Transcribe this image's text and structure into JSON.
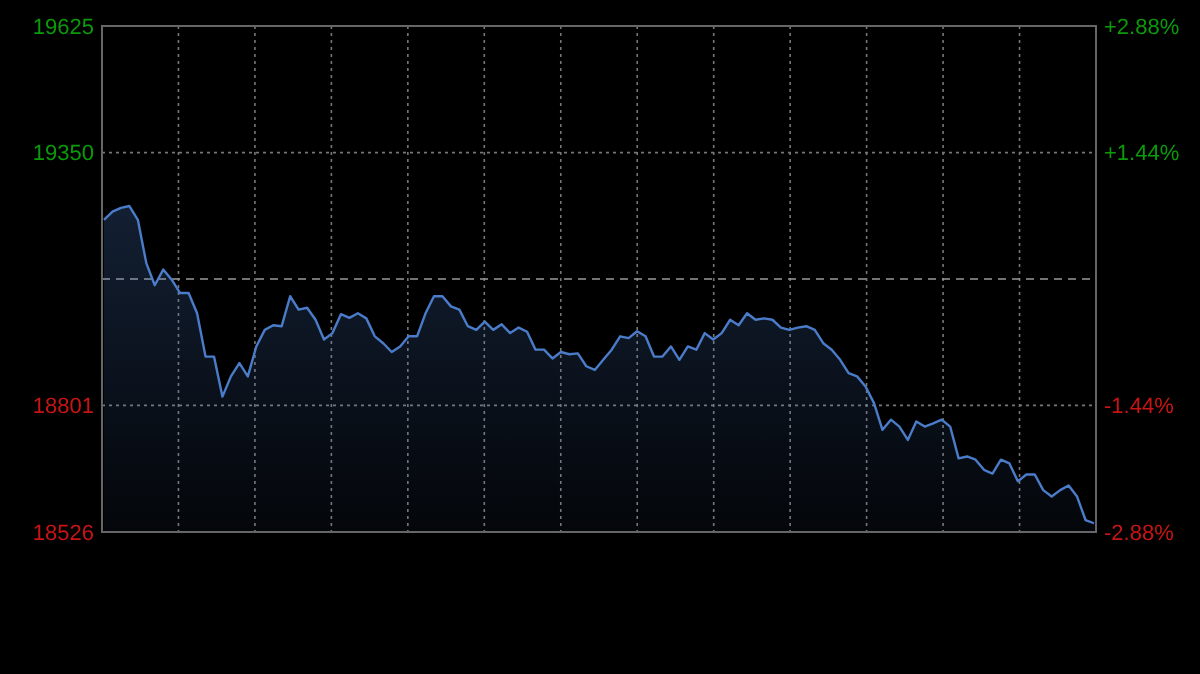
{
  "chart_data": {
    "type": "area",
    "categories": [
      null,
      null,
      null,
      null,
      null,
      null,
      null,
      null,
      null,
      null,
      null,
      null,
      null,
      null,
      null,
      null,
      null,
      null,
      null,
      null,
      null,
      null,
      null,
      null,
      null,
      null,
      null,
      null,
      null,
      null,
      null,
      null,
      null,
      null,
      null,
      null,
      null,
      null,
      null,
      null,
      null,
      null,
      null,
      null,
      null,
      null,
      null,
      null,
      null,
      null,
      null,
      null,
      null,
      null,
      null,
      null,
      null,
      null,
      null,
      null,
      null,
      null,
      null,
      null,
      null,
      null,
      null,
      null,
      null,
      null,
      null,
      null,
      null,
      null,
      null,
      null,
      null,
      null,
      null,
      null,
      null,
      null,
      null,
      null,
      null,
      null,
      null,
      null,
      null,
      null,
      null,
      null,
      null,
      null,
      null,
      null,
      null,
      null,
      null,
      null,
      null,
      null,
      null,
      null,
      null,
      null,
      null,
      null,
      null,
      null,
      null,
      null,
      null,
      null,
      null,
      null,
      null,
      null
    ],
    "series": [
      {
        "color": "#4a7cc9",
        "values": [
          19204,
          19222,
          19230,
          19234,
          19204,
          19110,
          19062,
          19096,
          19074,
          19045,
          19045,
          19001,
          18907,
          18907,
          18820,
          18864,
          18893,
          18864,
          18929,
          18965,
          18975,
          18973,
          19038,
          19009,
          19013,
          18987,
          18944,
          18958,
          18999,
          18991,
          19001,
          18990,
          18951,
          18936,
          18917,
          18929,
          18951,
          18951,
          19001,
          19038,
          19038,
          19016,
          19009,
          18973,
          18965,
          18983,
          18965,
          18977,
          18958,
          18970,
          18961,
          18922,
          18922,
          18903,
          18917,
          18912,
          18914,
          18886,
          18878,
          18900,
          18922,
          18951,
          18947,
          18962,
          18951,
          18907,
          18907,
          18929,
          18900,
          18929,
          18922,
          18958,
          18944,
          18958,
          18987,
          18975,
          19001,
          18987,
          18990,
          18987,
          18970,
          18965,
          18970,
          18973,
          18965,
          18936,
          18922,
          18900,
          18871,
          18864,
          18842,
          18806,
          18748,
          18770,
          18755,
          18726,
          18766,
          18755,
          18762,
          18770,
          18755,
          18686,
          18690,
          18683,
          18661,
          18653,
          18683,
          18675,
          18636,
          18651,
          18651,
          18617,
          18603,
          18617,
          18627,
          18603,
          18552,
          18545
        ]
      }
    ],
    "ylim": [
      18526,
      19625
    ],
    "yticks": [
      19625,
      19350,
      18801,
      18526
    ],
    "y2lim": [
      -2.88,
      2.88
    ],
    "y2ticks": [
      {
        "value": 2.88,
        "label": "+2.88%"
      },
      {
        "value": 1.44,
        "label": "+1.44%"
      },
      {
        "value": -1.44,
        "label": "-1.44%"
      },
      {
        "value": -2.88,
        "label": "-2.88%"
      }
    ],
    "ref_lines": [
      {
        "axis": "y",
        "value": 19075.5,
        "line_style": "dashed"
      }
    ],
    "grid": true,
    "line_style": "solid"
  }
}
